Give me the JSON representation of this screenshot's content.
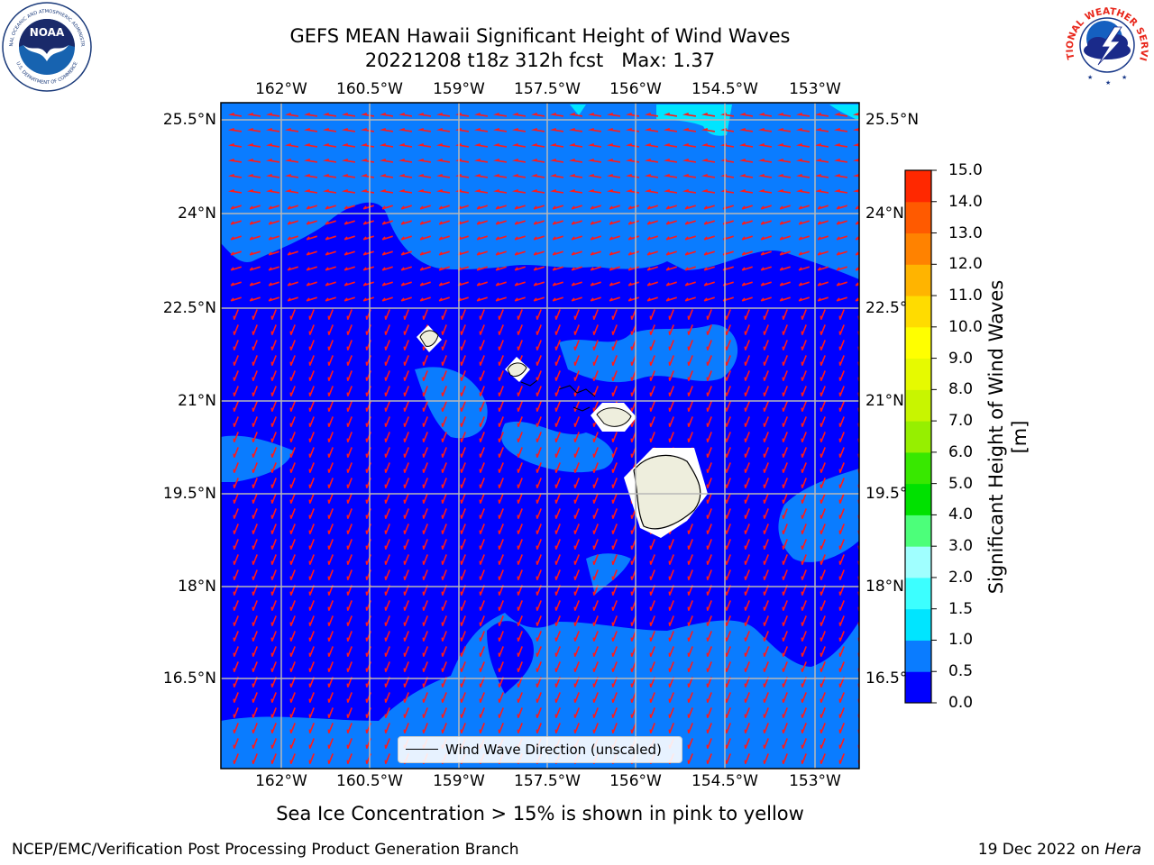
{
  "title": {
    "line1": "GEFS MEAN Hawaii Significant Height of Wind Waves",
    "line2": "20221208 t18z 312h fcst   Max: 1.37"
  },
  "axes": {
    "lon_labels": [
      "162°W",
      "160.5°W",
      "159°W",
      "157.5°W",
      "156°W",
      "154.5°W",
      "153°W"
    ],
    "lat_labels_left": [
      "25.5°N",
      "24°N",
      "22.5°N",
      "21°N",
      "19.5°N",
      "18°N",
      "16.5°N"
    ],
    "lat_labels_right": [
      "25.5°N",
      "24°N",
      "22.5°",
      "21°N",
      "19.5°",
      "18°N",
      "16.5°"
    ]
  },
  "map": {
    "grid": true,
    "contour_fill_colors": [
      "#0000ff",
      "#0a7cff"
    ],
    "arrow_color": "#ff1a1a",
    "land_color": "#eeeedd"
  },
  "legend": {
    "label": "Wind Wave Direction (unscaled)"
  },
  "colorbar": {
    "title": "Significant Height of Wind Waves [m]",
    "tick_labels": [
      "0.0",
      "0.5",
      "1.0",
      "1.5",
      "2.0",
      "3.0",
      "4.0",
      "5.0",
      "6.0",
      "7.0",
      "8.0",
      "9.0",
      "10.0",
      "11.0",
      "12.0",
      "13.0",
      "14.0",
      "15.0"
    ],
    "colors": [
      "#0000ff",
      "#0a7cff",
      "#00e5ff",
      "#3cffff",
      "#a0ffff",
      "#4cff7a",
      "#00e100",
      "#38e800",
      "#96ef00",
      "#c8f500",
      "#e6fa00",
      "#ffff00",
      "#ffdc00",
      "#ffb400",
      "#ff8200",
      "#ff5a00",
      "#ff2800",
      "#ff0000"
    ]
  },
  "footnote": "Sea Ice Concentration > 15% is shown in pink to yellow",
  "credits": {
    "left": "NCEP/EMC/Verification Post Processing Product Generation Branch",
    "right_prefix": "19 Dec 2022 on ",
    "right_machine": "Hera"
  },
  "logos": {
    "noara_text": "NOAA",
    "noaa_ring_top": "NATIONAL OCEANIC AND ATMOSPHERIC ADMINISTRATION",
    "noaa_ring_bottom": "U.S. DEPARTMENT OF COMMERCE",
    "nws_ring": "NATIONAL WEATHER SERVICE"
  }
}
